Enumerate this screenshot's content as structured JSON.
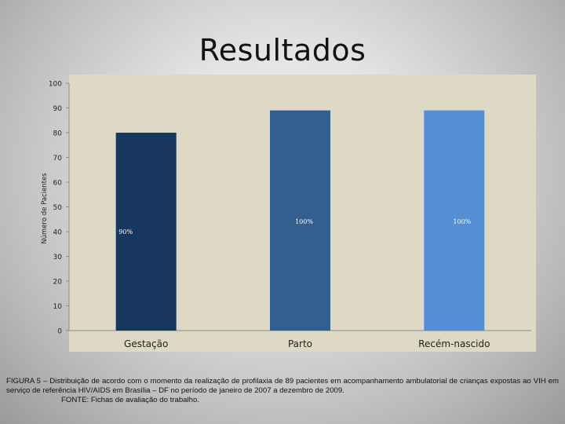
{
  "slide": {
    "title": "Resultados"
  },
  "chart_data": {
    "type": "bar",
    "categories": [
      "Gestação",
      "Parto",
      "Recém-nascido"
    ],
    "values": [
      80,
      89,
      89
    ],
    "data_labels": [
      "90%",
      "100%",
      "100%"
    ],
    "bar_colors": [
      "#17375e",
      "#335f90",
      "#558ed5"
    ],
    "ylabel": "Número de Pacientes",
    "xlabel": "",
    "ylim": [
      0,
      100
    ],
    "yticks": [
      0,
      10,
      20,
      30,
      40,
      50,
      60,
      70,
      80,
      90,
      100
    ],
    "grid": false,
    "plot_background": "#ddd9c4"
  },
  "caption": {
    "text": "FIGURA 5 – Distribuição de acordo com o momento da realização de profilaxia de 89 pacientes em acompanhamento ambulatorial de crianças expostas ao VIH em serviço de referência HIV/AIDS em Brasília – DF no período de janeiro de 2007 a dezembro de 2009.",
    "source": "FONTE: Fichas de avaliação do trabalho."
  }
}
